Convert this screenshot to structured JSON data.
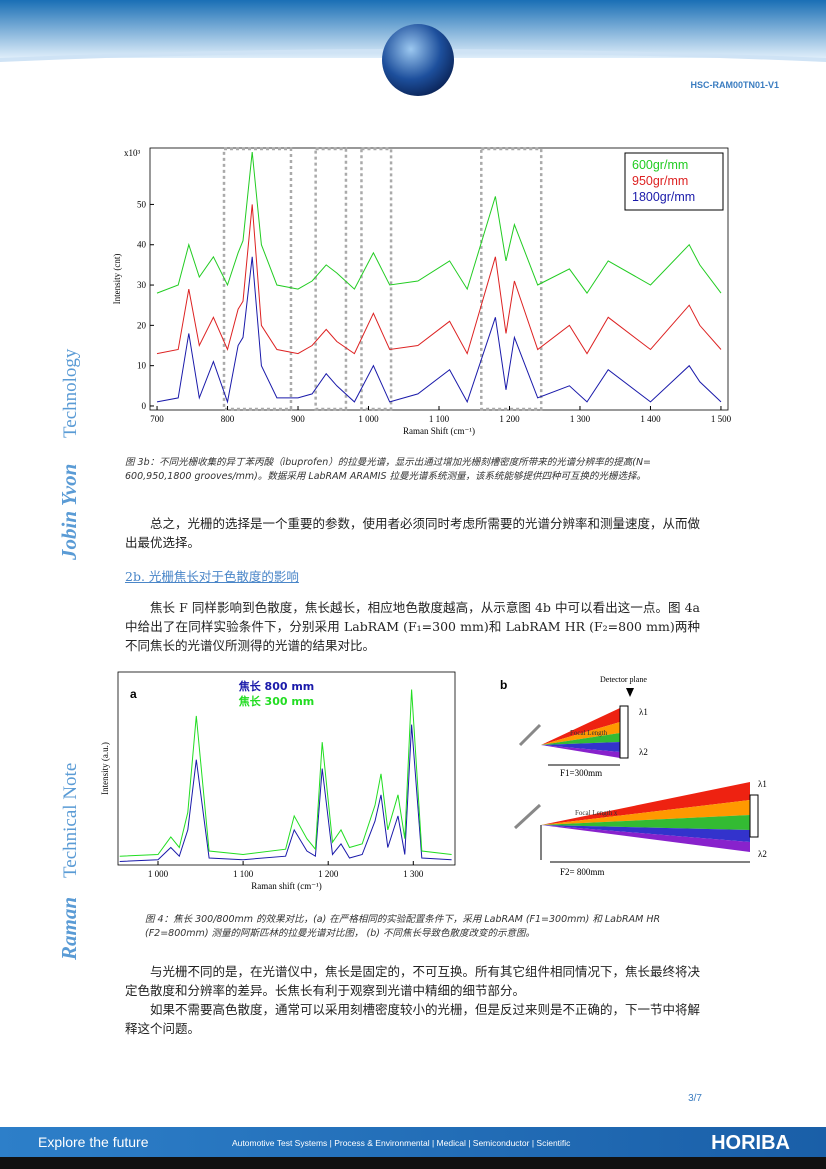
{
  "header": {
    "doc_code": "HSC-RAM00TN01-V1"
  },
  "side": {
    "brand_bold": "Jobin Yvon",
    "brand_light": "Technology",
    "note_bold": "Raman",
    "note_light": "Technical Note"
  },
  "chart_data": [
    {
      "type": "line",
      "x_label": "Raman Shift (cm⁻¹)",
      "y_label": "Intensity (cnt)",
      "y_multiplier": "x10³",
      "x": [
        700,
        730,
        745,
        760,
        780,
        800,
        815,
        822,
        835,
        848,
        870,
        900,
        920,
        940,
        955,
        980,
        1007,
        1030,
        1070,
        1115,
        1140,
        1180,
        1195,
        1207,
        1240,
        1285,
        1310,
        1340,
        1400,
        1455,
        1470,
        1500
      ],
      "series": [
        {
          "name": "600gr/mm",
          "color": "#22cc22",
          "values": [
            28,
            30,
            40,
            32,
            37,
            30,
            38,
            41,
            63,
            40,
            30,
            29,
            31,
            35,
            33,
            29,
            38,
            30,
            31,
            36,
            29,
            52,
            36,
            45,
            30,
            34,
            28,
            36,
            30,
            40,
            35,
            28
          ]
        },
        {
          "name": "950gr/mm",
          "color": "#dd2222",
          "values": [
            13,
            14,
            29,
            15,
            22,
            14,
            24,
            26,
            50,
            20,
            14,
            13,
            15,
            19,
            16,
            13,
            23,
            14,
            15,
            21,
            13,
            37,
            18,
            31,
            14,
            20,
            13,
            22,
            14,
            25,
            20,
            14
          ]
        },
        {
          "name": "1800gr/mm",
          "color": "#1a1aaa",
          "values": [
            1,
            2,
            18,
            2,
            11,
            1,
            15,
            17,
            37,
            10,
            2,
            2,
            3,
            8,
            5,
            1,
            10,
            1,
            3,
            9,
            1,
            22,
            4,
            17,
            2,
            5,
            1,
            9,
            1,
            10,
            6,
            1
          ]
        }
      ],
      "xlim": [
        690,
        1510
      ],
      "ylim": [
        -1,
        64
      ],
      "xticks": [
        700,
        800,
        900,
        {
          "value": 1000,
          "label": "1 000"
        },
        {
          "value": 1100,
          "label": "1 100"
        },
        {
          "value": 1200,
          "label": "1 200"
        },
        {
          "value": 1300,
          "label": "1 300"
        },
        {
          "value": 1400,
          "label": "1 400"
        },
        {
          "value": 1500,
          "label": "1 500"
        }
      ],
      "yticks": [
        0,
        10,
        20,
        30,
        40,
        50
      ],
      "highlight_ranges": [
        [
          795,
          890
        ],
        [
          925,
          968
        ],
        [
          990,
          1032
        ],
        [
          1160,
          1245
        ]
      ],
      "legend": "top-right"
    },
    {
      "type": "line",
      "panel_label": "a",
      "x_label": "Raman shift (cm⁻¹)",
      "y_label": "Intensity (a.u.)",
      "x": [
        955,
        1000,
        1015,
        1025,
        1035,
        1045,
        1060,
        1100,
        1150,
        1160,
        1175,
        1185,
        1193,
        1205,
        1215,
        1225,
        1240,
        1255,
        1262,
        1270,
        1282,
        1290,
        1298,
        1310,
        1345
      ],
      "series": [
        {
          "name": "焦长 800 mm",
          "color": "#1a1aaa",
          "values": [
            2,
            3,
            10,
            5,
            20,
            60,
            4,
            3,
            5,
            20,
            8,
            5,
            55,
            6,
            12,
            4,
            6,
            25,
            40,
            10,
            28,
            6,
            80,
            4,
            3
          ]
        },
        {
          "name": "焦长 300 mm",
          "color": "#22dd22",
          "values": [
            5,
            6,
            16,
            10,
            30,
            85,
            8,
            6,
            9,
            28,
            15,
            9,
            70,
            13,
            20,
            10,
            12,
            34,
            52,
            20,
            40,
            15,
            100,
            8,
            6
          ]
        }
      ],
      "xlim": [
        953,
        1349
      ],
      "ylim": [
        0,
        110
      ],
      "xticks": [
        {
          "value": 1000,
          "label": "1 000"
        },
        {
          "value": 1100,
          "label": "1 100"
        },
        {
          "value": 1200,
          "label": "1 200"
        },
        {
          "value": 1300,
          "label": "1 300"
        }
      ],
      "legend": "top-center"
    }
  ],
  "caption_3b": "图 3b：不同光栅收集的异丁苯丙酸（ibuprofen）的拉曼光谱，显示出通过增加光栅刻槽密度所带来的光谱分辨率的提高(N= 600,950,1800 grooves/mm)。数据采用 LabRAM ARAMIS 拉曼光谱系统测量，该系统能够提供四种可互换的光栅选择。",
  "paragraphs": [
    "总之，光栅的选择是一个重要的参数，使用者必须同时考虑所需要的光谱分辨率和测量速度，从而做出最优选择。",
    "焦长 F 同样影响到色散度，焦长越长，相应地色散度越高，从示意图 4b 中可以看出这一点。图 4a 中给出了在同样实验条件下，分别采用 LabRAM (F₁=300 mm)和 LabRAM HR (F₂=800 mm)两种不同焦长的光谱仪所测得的光谱的结果对比。",
    "与光栅不同的是，在光谱仪中，焦长是固定的，不可互换。所有其它组件相同情况下，焦长最终将决定色散度和分辨率的差异。长焦长有利于观察到光谱中精细的细节部分。",
    "如果不需要高色散度，通常可以采用刻槽密度较小的光栅，但是反过来则是不正确的，下一节中将解释这个问题。"
  ],
  "heading_2b": "2b. 光栅焦长对于色散度的影响",
  "diagram_4b": {
    "panel_label": "b",
    "detector": "Detector plane",
    "lambda1": "λ1",
    "lambda2": "λ2",
    "focal": "Focal Length",
    "focal_long": "Focal Length x",
    "f1": "F1=300mm",
    "f2": "F2= 800mm"
  },
  "caption_4": "图 4：焦长 300/800mm 的效果对比，(a) 在严格相同的实验配置条件下，采用 LabRAM (F1=300mm) 和 LabRAM HR (F2=800mm) 测量的阿斯匹林的拉曼光谱对比图，  (b) 不同焦长导致色散度改变的示意图。",
  "page_number": "3/7",
  "footer": {
    "slogan": "Explore the future",
    "sectors": "Automotive Test Systems  |  Process & Environmental  |  Medical  |  Semiconductor  |  Scientific",
    "logo": "HORIBA"
  }
}
